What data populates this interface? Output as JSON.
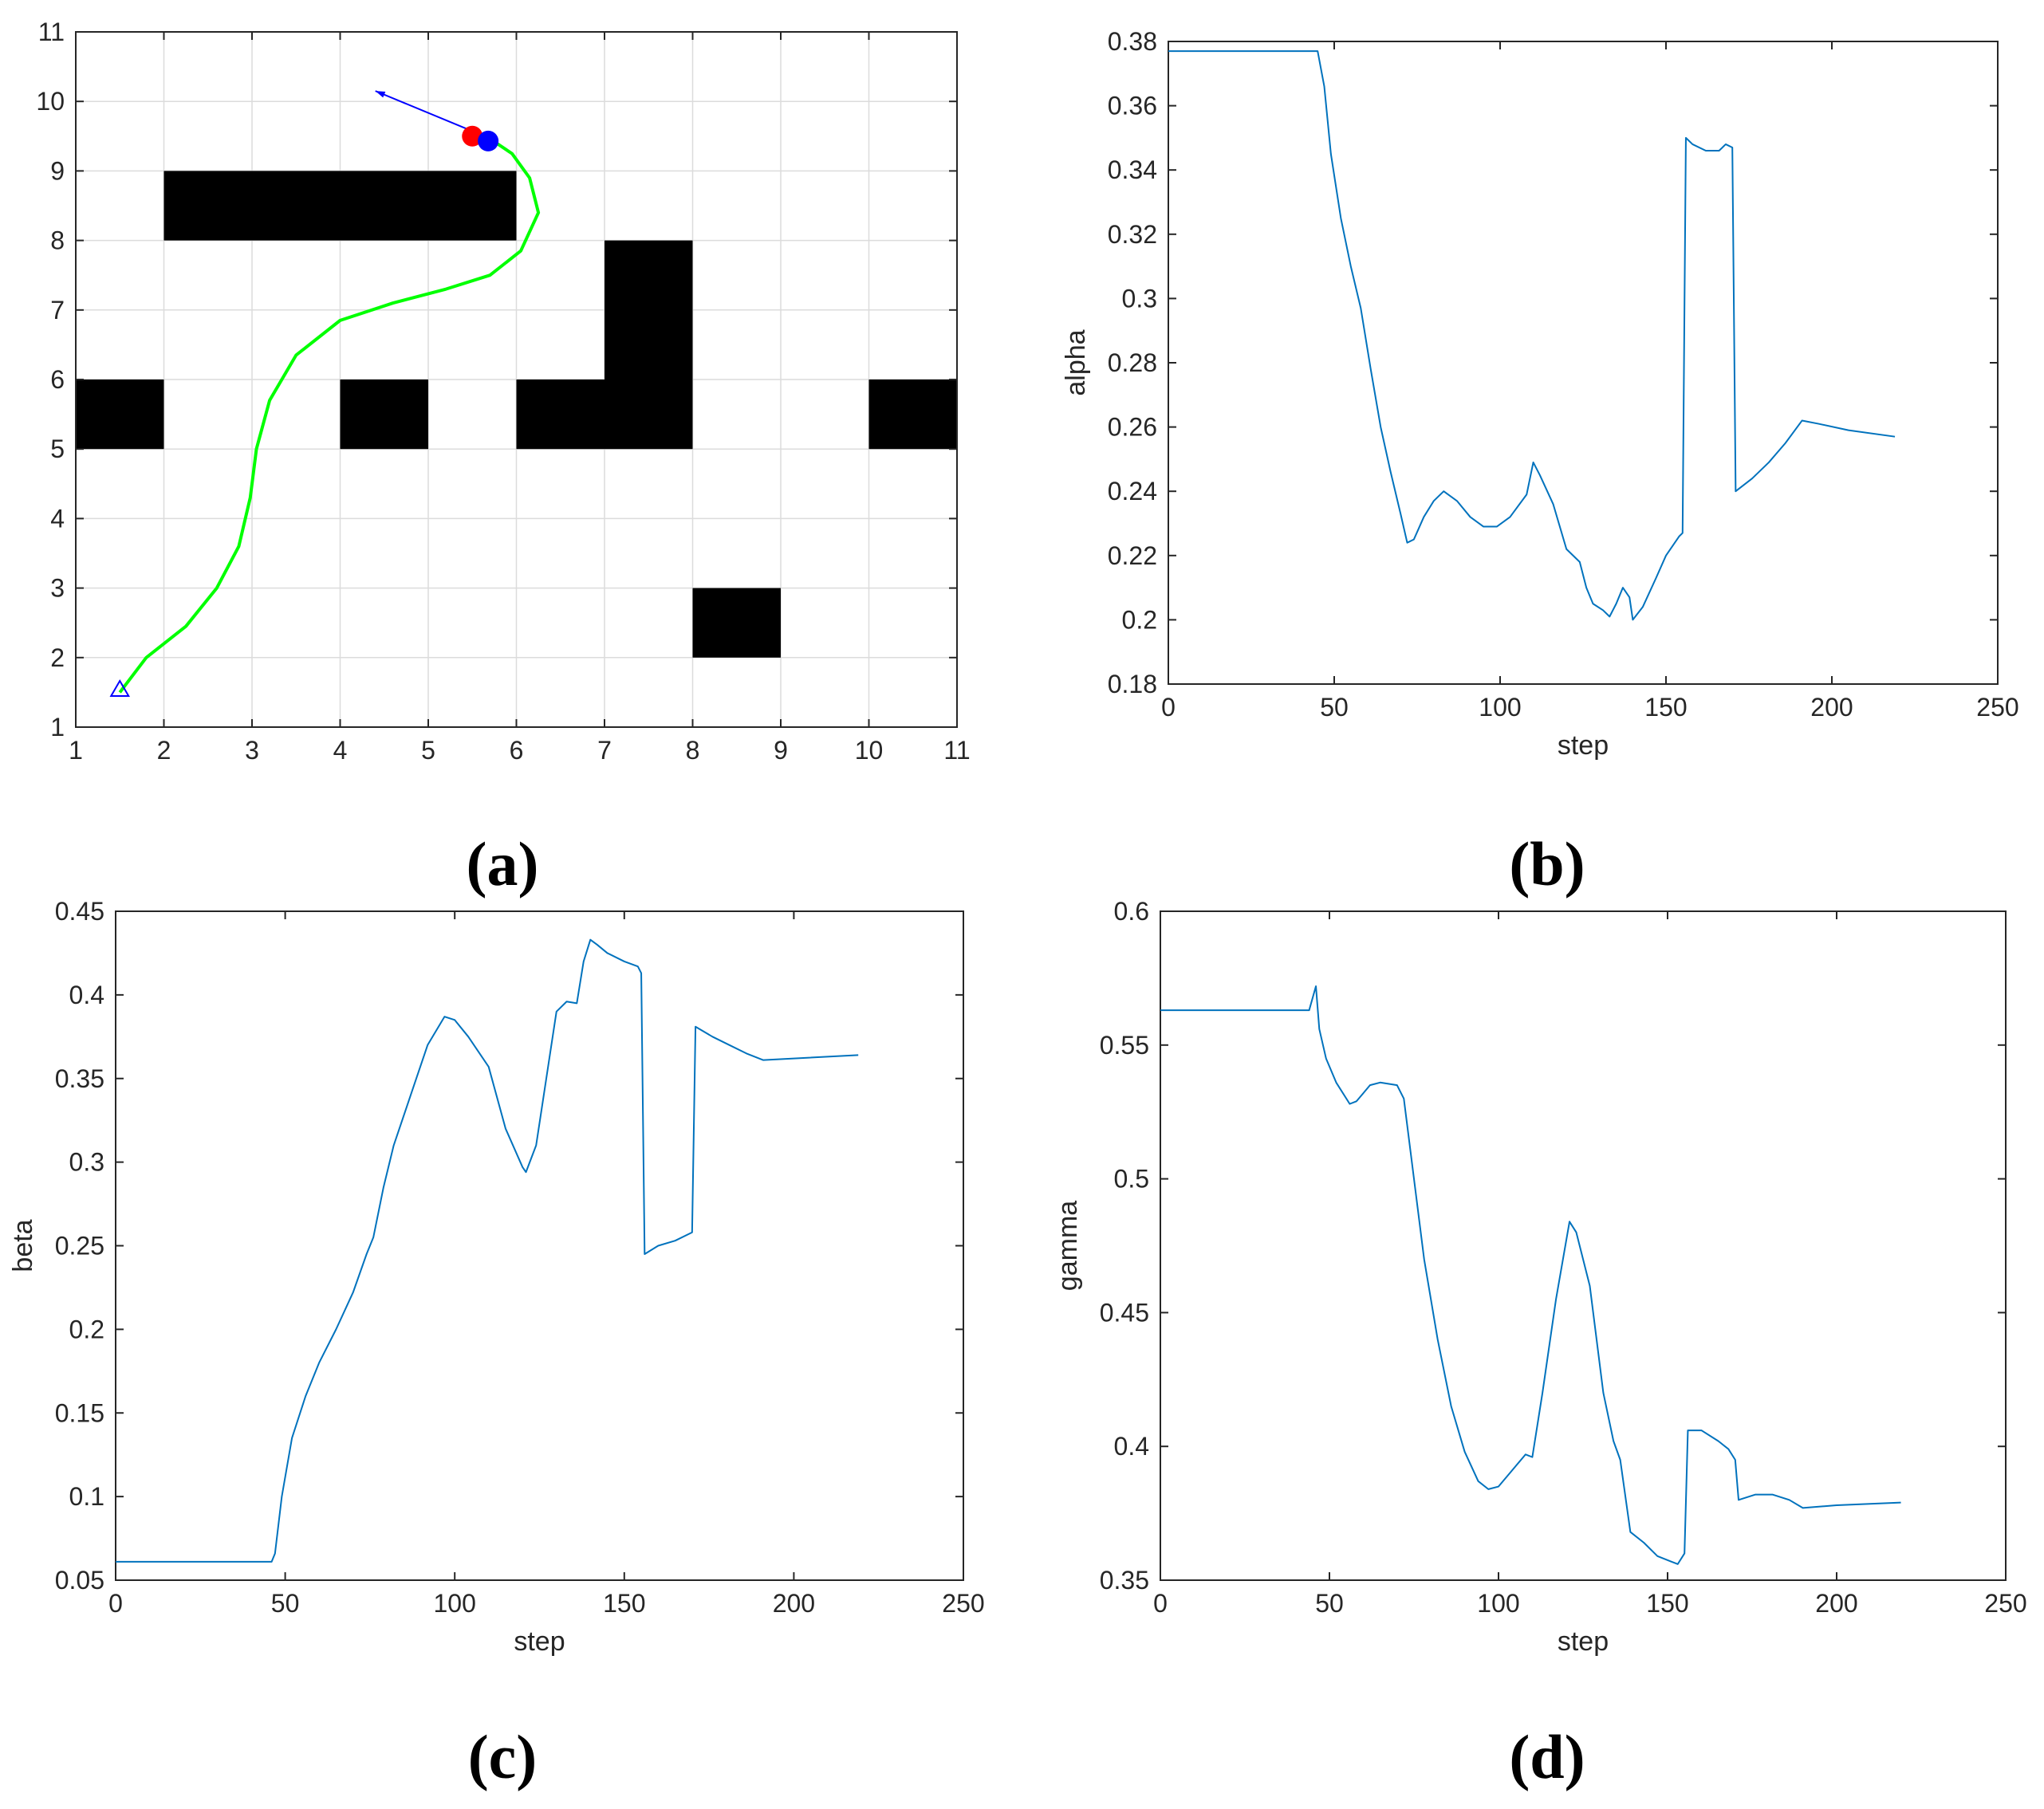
{
  "colors": {
    "series": "#0072BD",
    "path": "#00FF00",
    "obstacle": "#000000",
    "start_marker": "#0000FF",
    "robot_red": "#FF0000",
    "robot_blue": "#0000FF",
    "heading": "#0000FF",
    "grid": "#dcdcdc"
  },
  "chart_data": [
    {
      "id": "a",
      "type": "scatter",
      "caption": "(a)",
      "xlim": [
        1,
        11
      ],
      "ylim": [
        1,
        11
      ],
      "xticks": [
        1,
        2,
        3,
        4,
        5,
        6,
        7,
        8,
        9,
        10,
        11
      ],
      "yticks": [
        1,
        2,
        3,
        4,
        5,
        6,
        7,
        8,
        9,
        10,
        11
      ],
      "grid": true,
      "obstacles": [
        [
          2,
          8,
          6,
          9
        ],
        [
          1,
          5,
          2,
          6
        ],
        [
          4,
          5,
          5,
          6
        ],
        [
          6,
          5,
          8,
          6
        ],
        [
          7,
          6,
          8,
          8
        ],
        [
          10,
          5,
          11,
          6
        ],
        [
          8,
          2,
          9,
          3
        ]
      ],
      "path": [
        [
          1.5,
          1.5
        ],
        [
          1.8,
          2.0
        ],
        [
          2.25,
          2.45
        ],
        [
          2.6,
          3.0
        ],
        [
          2.85,
          3.6
        ],
        [
          2.98,
          4.3
        ],
        [
          3.05,
          5.0
        ],
        [
          3.2,
          5.7
        ],
        [
          3.5,
          6.35
        ],
        [
          4.0,
          6.85
        ],
        [
          4.6,
          7.1
        ],
        [
          5.2,
          7.3
        ],
        [
          5.7,
          7.5
        ],
        [
          6.05,
          7.85
        ],
        [
          6.25,
          8.4
        ],
        [
          6.15,
          8.9
        ],
        [
          5.95,
          9.25
        ],
        [
          5.75,
          9.42
        ]
      ],
      "start": [
        1.5,
        1.55
      ],
      "robot_red": [
        5.5,
        9.5
      ],
      "robot_blue": [
        5.68,
        9.43
      ],
      "heading": [
        [
          5.6,
          9.52
        ],
        [
          4.4,
          10.15
        ]
      ]
    },
    {
      "id": "b",
      "type": "line",
      "caption": "(b)",
      "xlabel": "step",
      "ylabel": "alpha",
      "xlim": [
        0,
        250
      ],
      "ylim": [
        0.18,
        0.38
      ],
      "xticks": [
        0,
        50,
        100,
        150,
        200,
        250
      ],
      "yticks": [
        0.18,
        0.2,
        0.22,
        0.24,
        0.26,
        0.28,
        0.3,
        0.32,
        0.34,
        0.36,
        0.38
      ],
      "ytick_labels": [
        "0.18",
        "0.2",
        "0.22",
        "0.24",
        "0.26",
        "0.28",
        "0.3",
        "0.32",
        "0.34",
        "0.36",
        "0.38"
      ],
      "x": [
        0,
        45,
        47,
        49,
        52,
        55,
        58,
        61,
        64,
        67,
        70,
        72,
        74,
        77,
        80,
        83,
        87,
        91,
        95,
        99,
        103,
        108,
        110,
        112,
        116,
        120,
        124,
        126,
        128,
        131,
        133,
        135,
        137,
        139,
        140,
        143,
        147,
        150,
        154,
        155,
        156,
        158,
        162,
        166,
        168,
        170,
        171,
        176,
        181,
        186,
        191,
        196,
        205,
        219
      ],
      "y": [
        0.377,
        0.377,
        0.366,
        0.345,
        0.325,
        0.31,
        0.297,
        0.278,
        0.26,
        0.246,
        0.233,
        0.224,
        0.225,
        0.232,
        0.237,
        0.24,
        0.237,
        0.232,
        0.229,
        0.229,
        0.232,
        0.239,
        0.249,
        0.245,
        0.236,
        0.222,
        0.218,
        0.21,
        0.205,
        0.203,
        0.201,
        0.205,
        0.21,
        0.207,
        0.2,
        0.204,
        0.213,
        0.22,
        0.226,
        0.227,
        0.35,
        0.348,
        0.346,
        0.346,
        0.348,
        0.347,
        0.24,
        0.244,
        0.249,
        0.255,
        0.262,
        0.261,
        0.259,
        0.257
      ]
    },
    {
      "id": "c",
      "type": "line",
      "caption": "(c)",
      "xlabel": "step",
      "ylabel": "beta",
      "xlim": [
        0,
        250
      ],
      "ylim": [
        0.05,
        0.45
      ],
      "xticks": [
        0,
        50,
        100,
        150,
        200,
        250
      ],
      "yticks": [
        0.05,
        0.1,
        0.15,
        0.2,
        0.25,
        0.3,
        0.35,
        0.4,
        0.45
      ],
      "ytick_labels": [
        "0.05",
        "0.1",
        "0.15",
        "0.2",
        "0.25",
        "0.3",
        "0.35",
        "0.4",
        "0.45"
      ],
      "x": [
        0,
        46,
        47,
        49,
        52,
        56,
        60,
        65,
        70,
        74,
        76,
        79,
        82,
        87,
        92,
        97,
        100,
        104,
        110,
        115,
        120,
        121,
        124,
        127,
        130,
        133,
        136,
        138,
        140,
        142,
        145,
        150,
        154,
        155,
        156,
        160,
        165,
        170,
        171,
        176,
        181,
        186,
        191,
        200,
        219
      ],
      "y": [
        0.061,
        0.061,
        0.066,
        0.1,
        0.135,
        0.16,
        0.18,
        0.2,
        0.222,
        0.245,
        0.255,
        0.285,
        0.31,
        0.34,
        0.37,
        0.387,
        0.385,
        0.375,
        0.357,
        0.32,
        0.297,
        0.294,
        0.31,
        0.35,
        0.39,
        0.396,
        0.395,
        0.42,
        0.433,
        0.43,
        0.425,
        0.42,
        0.417,
        0.413,
        0.245,
        0.25,
        0.253,
        0.258,
        0.381,
        0.375,
        0.37,
        0.365,
        0.361,
        0.362,
        0.364
      ]
    },
    {
      "id": "d",
      "type": "line",
      "caption": "(d)",
      "xlabel": "step",
      "ylabel": "gamma",
      "xlim": [
        0,
        250
      ],
      "ylim": [
        0.35,
        0.6
      ],
      "xticks": [
        0,
        50,
        100,
        150,
        200,
        250
      ],
      "yticks": [
        0.35,
        0.4,
        0.45,
        0.5,
        0.55,
        0.6
      ],
      "ytick_labels": [
        "0.35",
        "0.4",
        "0.45",
        "0.5",
        "0.55",
        "0.6"
      ],
      "x": [
        0,
        44,
        46,
        47,
        49,
        52,
        56,
        58,
        60,
        62,
        65,
        70,
        72,
        74,
        78,
        82,
        86,
        90,
        94,
        97,
        100,
        104,
        108,
        110,
        113,
        117,
        121,
        123,
        127,
        131,
        134,
        136,
        139,
        143,
        147,
        151,
        153,
        155,
        156,
        160,
        165,
        168,
        170,
        171,
        176,
        181,
        186,
        190,
        200,
        219
      ],
      "y": [
        0.563,
        0.563,
        0.572,
        0.556,
        0.545,
        0.536,
        0.528,
        0.529,
        0.532,
        0.535,
        0.536,
        0.535,
        0.53,
        0.51,
        0.47,
        0.44,
        0.415,
        0.398,
        0.387,
        0.384,
        0.385,
        0.391,
        0.397,
        0.396,
        0.42,
        0.455,
        0.484,
        0.48,
        0.46,
        0.42,
        0.402,
        0.395,
        0.368,
        0.364,
        0.359,
        0.357,
        0.356,
        0.36,
        0.406,
        0.406,
        0.402,
        0.399,
        0.395,
        0.38,
        0.382,
        0.382,
        0.38,
        0.377,
        0.378,
        0.379
      ]
    }
  ]
}
